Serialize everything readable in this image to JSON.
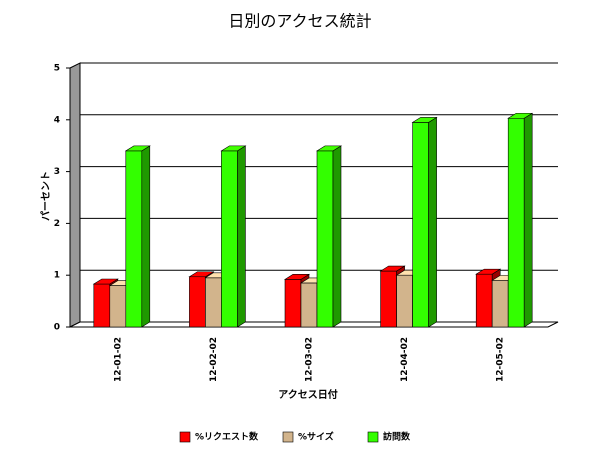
{
  "chart_data": {
    "type": "bar3d",
    "title": "日別のアクセス統計",
    "x_label": "アクセス日付",
    "y_label": "パーセント",
    "categories": [
      "12-01-02",
      "12-02-02",
      "12-03-02",
      "12-04-02",
      "12-05-02"
    ],
    "series": [
      {
        "name": "%リクエスト数",
        "color": "#ff0000",
        "values": [
          0.83,
          0.97,
          0.92,
          1.08,
          1.02
        ]
      },
      {
        "name": "%サイズ",
        "color": "#d2b48c",
        "values": [
          0.8,
          0.95,
          0.85,
          1.0,
          0.9
        ]
      },
      {
        "name": "訪問数",
        "color": "#33ff00",
        "values": [
          3.4,
          3.4,
          3.4,
          3.95,
          4.03
        ]
      }
    ],
    "ylim": [
      0,
      5
    ],
    "yticks": [
      0,
      1,
      2,
      3,
      4,
      5
    ],
    "grid": true
  }
}
